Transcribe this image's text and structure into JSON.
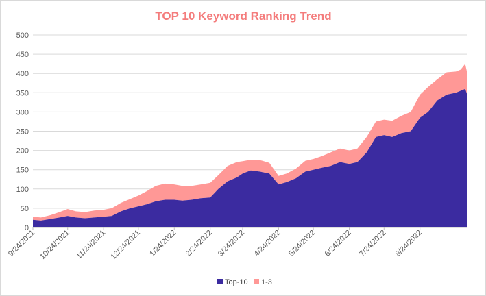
{
  "colors": {
    "top10": "#3b2ba0",
    "top3": "#ff9896",
    "title": "#f47c7c",
    "grid": "#d9d9d9"
  },
  "chart_data": {
    "type": "area",
    "stacked": true,
    "title": "TOP 10 Keyword Ranking Trend",
    "xlabel": "",
    "ylabel": "",
    "ylim": [
      0,
      500
    ],
    "yticks": [
      0,
      50,
      100,
      150,
      200,
      250,
      300,
      350,
      400,
      450,
      500
    ],
    "xlim": [
      "2021-09-24",
      "2022-10-04"
    ],
    "xticks": [
      "9/24/2021",
      "10/24/2021",
      "11/24/2021",
      "12/24/2021",
      "1/24/2022",
      "2/24/2022",
      "3/24/2022",
      "4/24/2022",
      "5/24/2022",
      "6/24/2022",
      "7/24/2022",
      "8/24/2022"
    ],
    "grid": true,
    "legend": "bottom",
    "series": [
      {
        "name": "Top-10",
        "x": [
          "2021-09-24",
          "2021-10-01",
          "2021-10-09",
          "2021-10-17",
          "2021-10-24",
          "2021-10-31",
          "2021-11-08",
          "2021-11-16",
          "2021-11-24",
          "2021-12-01",
          "2021-12-09",
          "2021-12-17",
          "2021-12-24",
          "2021-12-31",
          "2022-01-08",
          "2022-01-16",
          "2022-01-24",
          "2022-01-31",
          "2022-02-08",
          "2022-02-16",
          "2022-02-24",
          "2022-03-03",
          "2022-03-11",
          "2022-03-19",
          "2022-03-24",
          "2022-03-31",
          "2022-04-08",
          "2022-04-16",
          "2022-04-24",
          "2022-05-01",
          "2022-05-09",
          "2022-05-17",
          "2022-05-24",
          "2022-05-31",
          "2022-06-08",
          "2022-06-16",
          "2022-06-24",
          "2022-07-01",
          "2022-07-09",
          "2022-07-17",
          "2022-07-24",
          "2022-07-31",
          "2022-08-08",
          "2022-08-16",
          "2022-08-24",
          "2022-08-31",
          "2022-09-08",
          "2022-09-16",
          "2022-09-24",
          "2022-09-28",
          "2022-10-02",
          "2022-10-04"
        ],
        "values": [
          20,
          18,
          22,
          26,
          30,
          26,
          24,
          26,
          28,
          30,
          42,
          50,
          55,
          60,
          68,
          72,
          72,
          70,
          72,
          76,
          78,
          100,
          120,
          130,
          140,
          148,
          145,
          140,
          112,
          118,
          128,
          145,
          150,
          155,
          160,
          170,
          165,
          170,
          195,
          235,
          240,
          235,
          245,
          250,
          285,
          300,
          330,
          345,
          350,
          355,
          360,
          343
        ]
      },
      {
        "name": "1-3",
        "x": [
          "2021-09-24",
          "2021-10-01",
          "2021-10-09",
          "2021-10-17",
          "2021-10-24",
          "2021-10-31",
          "2021-11-08",
          "2021-11-16",
          "2021-11-24",
          "2021-12-01",
          "2021-12-09",
          "2021-12-17",
          "2021-12-24",
          "2021-12-31",
          "2022-01-08",
          "2022-01-16",
          "2022-01-24",
          "2022-01-31",
          "2022-02-08",
          "2022-02-16",
          "2022-02-24",
          "2022-03-03",
          "2022-03-11",
          "2022-03-19",
          "2022-03-24",
          "2022-03-31",
          "2022-04-08",
          "2022-04-16",
          "2022-04-24",
          "2022-05-01",
          "2022-05-09",
          "2022-05-17",
          "2022-05-24",
          "2022-05-31",
          "2022-06-08",
          "2022-06-16",
          "2022-06-24",
          "2022-07-01",
          "2022-07-09",
          "2022-07-17",
          "2022-07-24",
          "2022-07-31",
          "2022-08-08",
          "2022-08-16",
          "2022-08-24",
          "2022-08-31",
          "2022-09-08",
          "2022-09-16",
          "2022-09-24",
          "2022-09-28",
          "2022-10-02",
          "2022-10-04"
        ],
        "values": [
          8,
          8,
          10,
          14,
          18,
          16,
          16,
          18,
          18,
          20,
          22,
          24,
          28,
          34,
          40,
          42,
          40,
          38,
          36,
          36,
          38,
          36,
          40,
          40,
          32,
          28,
          30,
          28,
          22,
          22,
          25,
          28,
          28,
          30,
          35,
          35,
          35,
          35,
          40,
          40,
          40,
          42,
          45,
          50,
          60,
          65,
          55,
          58,
          55,
          55,
          65,
          55
        ]
      }
    ]
  }
}
